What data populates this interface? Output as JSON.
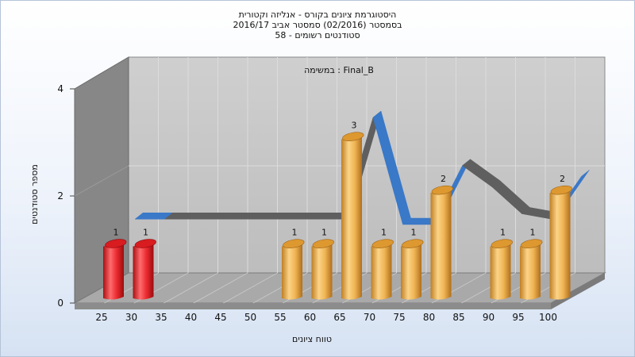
{
  "chart_data": {
    "type": "bar",
    "title": [
      "היסטוגרמת ציונים בקורס - אנליזה וקטורית",
      "בסמסטר  (02/2016)  סמסטר אביב 2016/17",
      "סטודנטים רשומים - 58"
    ],
    "subtitle": "במשימה : Final_B",
    "xlabel": "טווח ציונים",
    "ylabel": "מספר סטודנטים",
    "ylim": [
      0,
      4
    ],
    "yticks": [
      "0",
      "2",
      "4"
    ],
    "categories": [
      "25",
      "30",
      "35",
      "40",
      "45",
      "50",
      "55",
      "60",
      "65",
      "70",
      "75",
      "80",
      "85",
      "90",
      "95",
      "100"
    ],
    "values": [
      1,
      1,
      0,
      0,
      0,
      0,
      1,
      1,
      3,
      1,
      1,
      2,
      0,
      1,
      1,
      2
    ],
    "failing_categories": [
      "25",
      "30"
    ],
    "distribution_curve": [
      1.3,
      1.3,
      1.3,
      1.3,
      1.3,
      1.3,
      1.3,
      1.3,
      3.2,
      1.2,
      1.2,
      2.3,
      1.9,
      1.4,
      1.3,
      2.1
    ],
    "grid": true,
    "legend": "none",
    "colors": {
      "failing_bar": "#e8262a",
      "passing_bar": "#eaa53c",
      "curve_front": "#3a78c8",
      "curve_back": "#5f5f5f",
      "wall_back": "#c4c4c4",
      "wall_left": "#868686",
      "floor": "#a9a9a9"
    }
  }
}
